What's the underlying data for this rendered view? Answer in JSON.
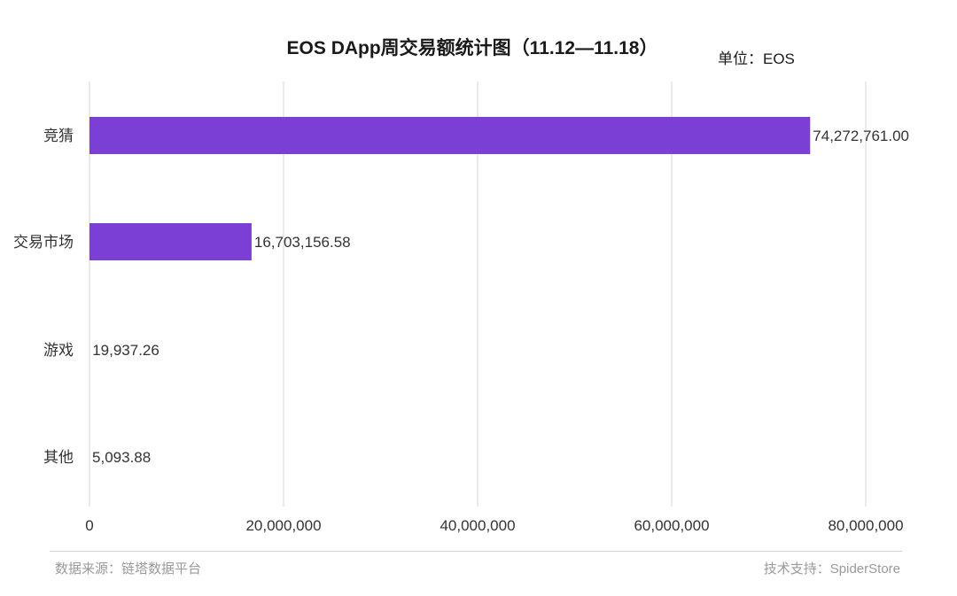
{
  "header": {
    "title": "EOS DApp周交易额统计图（11.12—11.18）",
    "unit": "单位：EOS"
  },
  "footer": {
    "source": "数据来源：链塔数据平台",
    "support": "技术支持：SpiderStore"
  },
  "colors": {
    "bar": "#7B3FD6",
    "grid": "#e3e3e3"
  },
  "chart_data": {
    "type": "bar",
    "orientation": "horizontal",
    "categories": [
      "竞猜",
      "交易市场",
      "游戏",
      "其他"
    ],
    "values": [
      74272761.0,
      16703156.58,
      19937.26,
      5093.88
    ],
    "value_labels": [
      "74,272,761.00",
      "16,703,156.58",
      "19,937.26",
      "5,093.88"
    ],
    "xlim": [
      0,
      80000000
    ],
    "x_ticks": [
      0,
      20000000,
      40000000,
      60000000,
      80000000
    ],
    "x_tick_labels": [
      "0",
      "20,000,000",
      "40,000,000",
      "60,000,000",
      "80,000,000"
    ],
    "grid": true,
    "title": "EOS DApp周交易额统计图（11.12—11.18）"
  }
}
